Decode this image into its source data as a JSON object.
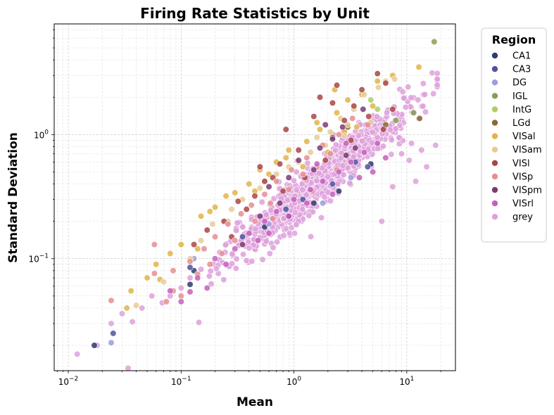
{
  "chart_data": {
    "type": "scatter",
    "title": "Firing Rate Statistics by Unit",
    "xlabel": "Mean",
    "ylabel": "Standard Deviation",
    "xscale": "log",
    "yscale": "log",
    "xlim": [
      0.0075,
      27
    ],
    "ylim": [
      0.0125,
      7.8
    ],
    "grid": true,
    "xticks": [
      {
        "value": 0.01,
        "base": "10",
        "exp": "−2"
      },
      {
        "value": 0.1,
        "base": "10",
        "exp": "−1"
      },
      {
        "value": 1,
        "base": "10",
        "exp": "0"
      },
      {
        "value": 10,
        "base": "10",
        "exp": "1"
      }
    ],
    "yticks": [
      {
        "value": 0.1,
        "base": "10",
        "exp": "−1"
      },
      {
        "value": 1,
        "base": "10",
        "exp": "0"
      }
    ],
    "legend": {
      "title": "Region",
      "placement": "outside-right-top",
      "entries": [
        {
          "name": "CA1",
          "color": "#303a6e"
        },
        {
          "name": "CA3",
          "color": "#5052a0"
        },
        {
          "name": "DG",
          "color": "#9a9edb"
        },
        {
          "name": "IGL",
          "color": "#889d52"
        },
        {
          "name": "IntG",
          "color": "#aecd66"
        },
        {
          "name": "LGd",
          "color": "#8b6835"
        },
        {
          "name": "VISal",
          "color": "#e2b44a"
        },
        {
          "name": "VISam",
          "color": "#e8cb93"
        },
        {
          "name": "VISl",
          "color": "#a94546"
        },
        {
          "name": "VISp",
          "color": "#e48f92"
        },
        {
          "name": "VISpm",
          "color": "#7b3b73"
        },
        {
          "name": "VISrl",
          "color": "#c660bb"
        },
        {
          "name": "grey",
          "color": "#dea1dc"
        }
      ]
    },
    "series": [
      {
        "name": "CA1",
        "points": [
          [
            0.017,
            0.02
          ],
          [
            0.12,
            0.062
          ],
          [
            0.13,
            0.08
          ],
          [
            0.55,
            0.18
          ],
          [
            1.5,
            0.28
          ],
          [
            2.5,
            0.35
          ],
          [
            4.8,
            0.58
          ],
          [
            0.9,
            0.22
          ]
        ]
      },
      {
        "name": "CA3",
        "points": [
          [
            0.025,
            0.025
          ],
          [
            0.12,
            0.085
          ],
          [
            0.35,
            0.15
          ],
          [
            0.85,
            0.25
          ],
          [
            2.2,
            0.4
          ],
          [
            4.5,
            0.55
          ],
          [
            1.2,
            0.3
          ],
          [
            3.5,
            0.6
          ]
        ]
      },
      {
        "name": "DG",
        "points": [
          [
            0.024,
            0.021
          ],
          [
            0.13,
            0.1
          ],
          [
            0.6,
            0.19
          ],
          [
            1.8,
            0.28
          ],
          [
            3.2,
            0.45
          ]
        ]
      },
      {
        "name": "IGL",
        "points": [
          [
            17.5,
            5.6
          ],
          [
            11.5,
            1.5
          ],
          [
            8,
            1.3
          ]
        ]
      },
      {
        "name": "IntG",
        "points": [
          [
            5.5,
            1.6
          ],
          [
            4.8,
            1.9
          ]
        ]
      },
      {
        "name": "LGd",
        "points": [
          [
            6.5,
            1.2
          ],
          [
            13,
            1.35
          ],
          [
            3,
            1.15
          ],
          [
            2.2,
            0.95
          ]
        ]
      },
      {
        "name": "VISal",
        "points": [
          [
            0.036,
            0.055
          ],
          [
            0.05,
            0.07
          ],
          [
            0.06,
            0.09
          ],
          [
            0.08,
            0.11
          ],
          [
            0.1,
            0.13
          ],
          [
            0.15,
            0.22
          ],
          [
            0.2,
            0.26
          ],
          [
            0.25,
            0.32
          ],
          [
            0.3,
            0.34
          ],
          [
            0.4,
            0.4
          ],
          [
            0.5,
            0.52
          ],
          [
            0.7,
            0.6
          ],
          [
            0.9,
            0.75
          ],
          [
            1.3,
            0.88
          ],
          [
            1.7,
            1.1
          ],
          [
            2.4,
            1.5
          ],
          [
            3,
            1.9
          ],
          [
            4,
            2.1
          ],
          [
            5.5,
            2.7
          ],
          [
            7.5,
            3.0
          ],
          [
            12.8,
            3.5
          ],
          [
            1.2,
            0.55
          ],
          [
            0.45,
            0.35
          ],
          [
            2,
            0.72
          ],
          [
            2.8,
            1.05
          ],
          [
            0.033,
            0.04
          ],
          [
            0.065,
            0.068
          ],
          [
            0.14,
            0.12
          ],
          [
            0.6,
            0.48
          ],
          [
            1.6,
            1.25
          ],
          [
            3.6,
            1.15
          ],
          [
            5,
            1.7
          ],
          [
            0.18,
            0.24
          ],
          [
            0.85,
            0.65
          ],
          [
            2.3,
            2.3
          ]
        ]
      },
      {
        "name": "VISam",
        "points": [
          [
            0.04,
            0.042
          ],
          [
            0.07,
            0.065
          ],
          [
            0.12,
            0.1
          ],
          [
            0.19,
            0.19
          ],
          [
            0.28,
            0.25
          ],
          [
            0.35,
            0.3
          ],
          [
            0.5,
            0.37
          ],
          [
            0.7,
            0.48
          ],
          [
            1.1,
            0.6
          ],
          [
            1.6,
            0.95
          ],
          [
            2.1,
            1.05
          ],
          [
            2.6,
            1.35
          ],
          [
            3.4,
            1.6
          ],
          [
            4.2,
            2.1
          ],
          [
            5.6,
            2.4
          ],
          [
            6.5,
            2.7
          ],
          [
            0.55,
            0.42
          ],
          [
            0.9,
            0.55
          ],
          [
            1.9,
            0.82
          ],
          [
            3,
            1.2
          ],
          [
            0.15,
            0.14
          ],
          [
            0.26,
            0.2
          ],
          [
            1.4,
            0.72
          ],
          [
            2.8,
            0.98
          ],
          [
            4.8,
            1.25
          ],
          [
            7.8,
            2.8
          ]
        ]
      },
      {
        "name": "VISl",
        "points": [
          [
            0.13,
            0.13
          ],
          [
            0.17,
            0.17
          ],
          [
            0.24,
            0.2
          ],
          [
            0.32,
            0.29
          ],
          [
            0.45,
            0.32
          ],
          [
            0.55,
            0.42
          ],
          [
            0.75,
            0.58
          ],
          [
            0.85,
            1.1
          ],
          [
            1.5,
            1.4
          ],
          [
            1.7,
            2.0
          ],
          [
            2.2,
            1.8
          ],
          [
            2.4,
            2.5
          ],
          [
            3.4,
            1.7
          ],
          [
            4,
            2.3
          ],
          [
            4.6,
            1.4
          ],
          [
            5.5,
            3.1
          ],
          [
            6.5,
            2.6
          ],
          [
            7.5,
            1.6
          ],
          [
            0.8,
            0.35
          ],
          [
            1.25,
            0.45
          ],
          [
            0.38,
            0.25
          ],
          [
            0.65,
            0.45
          ],
          [
            1.1,
            0.75
          ],
          [
            2.8,
            1.3
          ],
          [
            6.2,
            1.1
          ],
          [
            0.28,
            0.15
          ],
          [
            0.5,
            0.55
          ],
          [
            1.9,
            0.62
          ],
          [
            3.2,
            0.9
          ]
        ]
      },
      {
        "name": "VISp",
        "points": [
          [
            0.024,
            0.046
          ],
          [
            0.058,
            0.13
          ],
          [
            0.058,
            0.076
          ],
          [
            0.074,
            0.045
          ],
          [
            0.085,
            0.08
          ],
          [
            0.1,
            0.05
          ],
          [
            0.12,
            0.095
          ],
          [
            0.16,
            0.12
          ],
          [
            0.2,
            0.15
          ],
          [
            0.26,
            0.19
          ],
          [
            0.34,
            0.23
          ],
          [
            0.42,
            0.27
          ],
          [
            0.55,
            0.33
          ],
          [
            0.7,
            0.42
          ],
          [
            0.95,
            0.52
          ],
          [
            1.3,
            0.65
          ],
          [
            1.8,
            0.82
          ],
          [
            2.5,
            1.0
          ],
          [
            3.3,
            1.35
          ],
          [
            4.5,
            1.2
          ],
          [
            0.45,
            0.2
          ],
          [
            0.62,
            0.28
          ],
          [
            0.9,
            0.36
          ],
          [
            1.2,
            0.48
          ],
          [
            1.6,
            0.55
          ],
          [
            2.1,
            0.7
          ],
          [
            0.3,
            0.14
          ],
          [
            0.65,
            0.21
          ],
          [
            0.23,
            0.11
          ],
          [
            0.18,
            0.09
          ],
          [
            0.14,
            0.075
          ],
          [
            1.45,
            0.35
          ],
          [
            2.4,
            0.52
          ],
          [
            0.085,
            0.055
          ]
        ]
      },
      {
        "name": "VISpm",
        "points": [
          [
            0.6,
            0.38
          ],
          [
            0.9,
            0.45
          ],
          [
            1.1,
            0.62
          ],
          [
            1.7,
            0.78
          ],
          [
            2.2,
            0.92
          ],
          [
            2.7,
            1.15
          ],
          [
            3.5,
            0.78
          ],
          [
            4.1,
            1.6
          ],
          [
            0.75,
            0.28
          ],
          [
            0.5,
            0.22
          ],
          [
            1.5,
            0.52
          ],
          [
            2.9,
            0.68
          ],
          [
            1.9,
            1.2
          ],
          [
            0.35,
            0.13
          ]
        ]
      },
      {
        "name": "VISrl",
        "points": [
          [
            0.1,
            0.045
          ],
          [
            0.08,
            0.055
          ],
          [
            0.14,
            0.07
          ],
          [
            0.2,
            0.1
          ],
          [
            0.3,
            0.12
          ],
          [
            0.4,
            0.16
          ],
          [
            0.55,
            0.2
          ],
          [
            0.7,
            0.24
          ],
          [
            1.0,
            0.3
          ],
          [
            1.4,
            0.36
          ],
          [
            1.8,
            0.42
          ],
          [
            2.5,
            0.5
          ],
          [
            3.2,
            0.6
          ],
          [
            4.2,
            0.72
          ],
          [
            5.5,
            0.85
          ],
          [
            0.6,
            0.16
          ],
          [
            0.9,
            0.22
          ],
          [
            1.3,
            0.28
          ],
          [
            2.2,
            0.33
          ],
          [
            3.8,
            0.45
          ],
          [
            5,
            0.5
          ],
          [
            6.5,
            0.65
          ],
          [
            0.25,
            0.09
          ],
          [
            0.48,
            0.14
          ],
          [
            0.17,
            0.058
          ],
          [
            2.9,
            0.85
          ],
          [
            1.6,
            0.58
          ],
          [
            0.12,
            0.054
          ]
        ]
      }
    ],
    "grey_series": {
      "name": "grey",
      "count": 860,
      "seed": 7,
      "log10_mean_center": 0.24,
      "log10_mean_spread": 0.4,
      "log10_mean_min": -1.95,
      "log10_mean_max": 1.27,
      "slope": 0.75,
      "intercept": -0.55,
      "noise": 0.095,
      "anchors": [
        [
          0.012,
          0.017
        ],
        [
          0.018,
          0.02
        ],
        [
          0.024,
          0.03
        ],
        [
          0.03,
          0.036
        ],
        [
          0.037,
          0.031
        ],
        [
          0.045,
          0.04
        ],
        [
          0.055,
          0.05
        ],
        [
          0.068,
          0.044
        ],
        [
          0.08,
          0.05
        ],
        [
          0.1,
          0.058
        ],
        [
          0.12,
          0.07
        ],
        [
          0.15,
          0.082
        ],
        [
          18,
          0.82
        ],
        [
          15,
          0.55
        ],
        [
          10.5,
          0.62
        ],
        [
          7.5,
          0.38
        ],
        [
          9,
          0.7
        ],
        [
          12,
          0.42
        ],
        [
          6,
          0.2
        ],
        [
          11,
          0.85
        ],
        [
          13.5,
          0.75
        ]
      ]
    }
  }
}
